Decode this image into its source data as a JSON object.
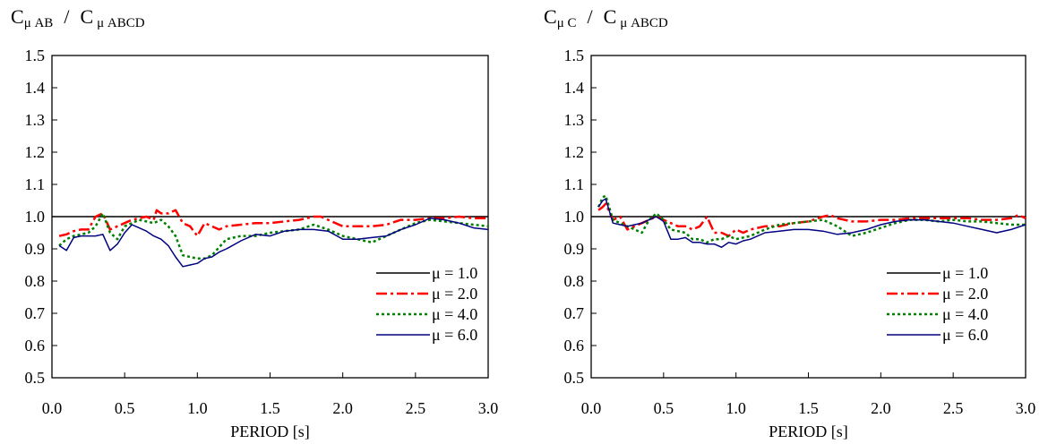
{
  "colors": {
    "mu1": "#000000",
    "mu2": "#ff0000",
    "mu4": "#008000",
    "mu6": "#000080"
  },
  "chart_data": [
    {
      "type": "line",
      "title": {
        "num_base": "C",
        "num_sub": "μ AB",
        "slash": "/",
        "den_base": "C",
        "den_sub": "μ ABCD"
      },
      "xlabel": "PERIOD [s]",
      "ylabel": "",
      "xlim": [
        0.0,
        3.0
      ],
      "ylim": [
        0.5,
        1.5
      ],
      "xticks": [
        "0.0",
        "0.5",
        "1.0",
        "1.5",
        "2.0",
        "2.5",
        "3.0"
      ],
      "yticks": [
        "0.5",
        "0.6",
        "0.7",
        "0.8",
        "0.9",
        "1.0",
        "1.1",
        "1.2",
        "1.3",
        "1.4",
        "1.5"
      ],
      "grid": false,
      "legend_position": "bottom-right",
      "series": [
        {
          "name": "μ = 1.0",
          "style": "solid",
          "color": "#000000",
          "x": [
            0.0,
            3.0
          ],
          "y": [
            1.0,
            1.0
          ]
        },
        {
          "name": "μ = 2.0",
          "style": "dashdot",
          "color": "#ff0000",
          "x": [
            0.05,
            0.1,
            0.15,
            0.2,
            0.25,
            0.3,
            0.35,
            0.4,
            0.45,
            0.5,
            0.55,
            0.6,
            0.65,
            0.7,
            0.72,
            0.75,
            0.8,
            0.85,
            0.9,
            0.95,
            1.0,
            1.05,
            1.1,
            1.15,
            1.2,
            1.3,
            1.4,
            1.5,
            1.6,
            1.7,
            1.75,
            1.8,
            1.85,
            1.9,
            2.0,
            2.1,
            2.2,
            2.3,
            2.4,
            2.5,
            2.6,
            2.7,
            2.8,
            2.9,
            3.0
          ],
          "y": [
            0.94,
            0.945,
            0.955,
            0.96,
            0.96,
            1.0,
            1.01,
            0.96,
            0.97,
            0.98,
            0.99,
            0.995,
            1.0,
            0.99,
            1.02,
            1.01,
            1.01,
            1.02,
            0.98,
            0.97,
            0.94,
            0.98,
            0.97,
            0.96,
            0.97,
            0.975,
            0.98,
            0.98,
            0.985,
            0.99,
            0.995,
            1.0,
            1.0,
            0.99,
            0.97,
            0.97,
            0.97,
            0.975,
            0.99,
            0.99,
            0.995,
            0.995,
            1.0,
            0.995,
            0.995
          ]
        },
        {
          "name": "μ = 4.0",
          "style": "dotted",
          "color": "#008000",
          "x": [
            0.05,
            0.1,
            0.15,
            0.2,
            0.25,
            0.3,
            0.35,
            0.4,
            0.45,
            0.5,
            0.55,
            0.6,
            0.65,
            0.7,
            0.75,
            0.8,
            0.85,
            0.9,
            0.95,
            1.0,
            1.05,
            1.1,
            1.2,
            1.3,
            1.4,
            1.5,
            1.6,
            1.7,
            1.8,
            1.9,
            2.0,
            2.1,
            2.2,
            2.3,
            2.4,
            2.5,
            2.6,
            2.7,
            2.8,
            2.9,
            3.0
          ],
          "y": [
            0.91,
            0.93,
            0.94,
            0.945,
            0.95,
            0.97,
            1.01,
            0.95,
            0.93,
            0.97,
            0.98,
            0.99,
            0.985,
            0.98,
            0.99,
            0.97,
            0.94,
            0.88,
            0.875,
            0.87,
            0.87,
            0.88,
            0.93,
            0.94,
            0.94,
            0.95,
            0.955,
            0.96,
            0.975,
            0.96,
            0.94,
            0.93,
            0.92,
            0.94,
            0.96,
            0.98,
            0.99,
            0.985,
            0.98,
            0.975,
            0.97
          ]
        },
        {
          "name": "μ = 6.0",
          "style": "solid",
          "color": "#000080",
          "x": [
            0.05,
            0.1,
            0.15,
            0.2,
            0.25,
            0.3,
            0.35,
            0.4,
            0.45,
            0.5,
            0.55,
            0.6,
            0.65,
            0.7,
            0.75,
            0.8,
            0.85,
            0.9,
            0.95,
            1.0,
            1.05,
            1.1,
            1.15,
            1.2,
            1.3,
            1.4,
            1.5,
            1.6,
            1.7,
            1.8,
            1.9,
            2.0,
            2.1,
            2.2,
            2.3,
            2.4,
            2.5,
            2.6,
            2.7,
            2.8,
            2.9,
            3.0
          ],
          "y": [
            0.91,
            0.895,
            0.935,
            0.94,
            0.94,
            0.94,
            0.945,
            0.895,
            0.915,
            0.95,
            0.975,
            0.965,
            0.955,
            0.94,
            0.93,
            0.91,
            0.875,
            0.845,
            0.85,
            0.855,
            0.87,
            0.875,
            0.89,
            0.9,
            0.925,
            0.945,
            0.94,
            0.955,
            0.96,
            0.96,
            0.955,
            0.93,
            0.93,
            0.935,
            0.94,
            0.96,
            0.975,
            0.995,
            0.99,
            0.98,
            0.965,
            0.96
          ]
        }
      ]
    },
    {
      "type": "line",
      "title": {
        "num_base": "C",
        "num_sub": "μ C",
        "slash": "/",
        "den_base": "C",
        "den_sub": "μ ABCD"
      },
      "xlabel": "PERIOD [s]",
      "ylabel": "",
      "xlim": [
        0.0,
        3.0
      ],
      "ylim": [
        0.5,
        1.5
      ],
      "xticks": [
        "0.0",
        "0.5",
        "1.0",
        "1.5",
        "2.0",
        "2.5",
        "3.0"
      ],
      "yticks": [
        "0.5",
        "0.6",
        "0.7",
        "0.8",
        "0.9",
        "1.0",
        "1.1",
        "1.2",
        "1.3",
        "1.4",
        "1.5"
      ],
      "grid": false,
      "legend_position": "bottom-right",
      "series": [
        {
          "name": "μ = 1.0",
          "style": "solid",
          "color": "#000000",
          "x": [
            0.0,
            3.0
          ],
          "y": [
            1.0,
            1.0
          ]
        },
        {
          "name": "μ = 2.0",
          "style": "dashdot",
          "color": "#ff0000",
          "x": [
            0.05,
            0.08,
            0.1,
            0.15,
            0.2,
            0.25,
            0.3,
            0.35,
            0.4,
            0.45,
            0.5,
            0.55,
            0.6,
            0.65,
            0.7,
            0.75,
            0.8,
            0.85,
            0.9,
            0.95,
            1.0,
            1.05,
            1.1,
            1.2,
            1.3,
            1.4,
            1.5,
            1.6,
            1.65,
            1.7,
            1.8,
            1.9,
            2.0,
            2.1,
            2.2,
            2.3,
            2.4,
            2.5,
            2.6,
            2.7,
            2.8,
            2.9,
            2.95,
            3.0
          ],
          "y": [
            1.02,
            1.03,
            1.04,
            0.99,
            1.0,
            0.96,
            0.97,
            0.98,
            0.99,
            1.0,
            0.99,
            0.98,
            0.97,
            0.97,
            0.96,
            0.97,
            1.0,
            0.95,
            0.95,
            0.94,
            0.96,
            0.95,
            0.96,
            0.97,
            0.97,
            0.98,
            0.985,
            1.0,
            1.005,
            0.995,
            0.985,
            0.985,
            0.99,
            0.99,
            0.995,
            0.995,
            0.995,
            0.995,
            0.995,
            0.99,
            0.99,
            0.995,
            1.005,
            0.995
          ]
        },
        {
          "name": "μ = 4.0",
          "style": "dotted",
          "color": "#008000",
          "x": [
            0.05,
            0.08,
            0.1,
            0.15,
            0.2,
            0.25,
            0.3,
            0.35,
            0.4,
            0.45,
            0.5,
            0.55,
            0.6,
            0.65,
            0.7,
            0.75,
            0.8,
            0.85,
            0.9,
            0.95,
            1.0,
            1.1,
            1.2,
            1.3,
            1.4,
            1.5,
            1.6,
            1.7,
            1.8,
            1.9,
            2.0,
            2.1,
            2.2,
            2.3,
            2.4,
            2.5,
            2.6,
            2.7,
            2.8,
            2.9,
            3.0
          ],
          "y": [
            1.03,
            1.06,
            1.065,
            0.99,
            0.98,
            0.97,
            0.96,
            0.95,
            0.99,
            1.01,
            0.99,
            0.96,
            0.955,
            0.95,
            0.93,
            0.93,
            0.92,
            0.93,
            0.93,
            0.94,
            0.93,
            0.94,
            0.96,
            0.975,
            0.98,
            0.985,
            0.99,
            0.97,
            0.94,
            0.95,
            0.965,
            0.98,
            0.99,
            0.99,
            0.985,
            0.99,
            0.985,
            0.985,
            0.98,
            0.975,
            0.975
          ]
        },
        {
          "name": "μ = 6.0",
          "style": "solid",
          "color": "#000080",
          "x": [
            0.05,
            0.08,
            0.1,
            0.15,
            0.2,
            0.25,
            0.3,
            0.35,
            0.4,
            0.45,
            0.5,
            0.55,
            0.6,
            0.65,
            0.7,
            0.75,
            0.8,
            0.85,
            0.9,
            0.95,
            1.0,
            1.05,
            1.1,
            1.2,
            1.3,
            1.4,
            1.5,
            1.6,
            1.7,
            1.8,
            1.9,
            2.0,
            2.1,
            2.2,
            2.3,
            2.4,
            2.5,
            2.6,
            2.7,
            2.8,
            2.9,
            3.0
          ],
          "y": [
            1.03,
            1.05,
            1.055,
            0.98,
            0.975,
            0.97,
            0.975,
            0.98,
            0.99,
            1.0,
            0.985,
            0.93,
            0.93,
            0.935,
            0.92,
            0.92,
            0.915,
            0.915,
            0.905,
            0.92,
            0.915,
            0.925,
            0.93,
            0.95,
            0.955,
            0.96,
            0.96,
            0.955,
            0.945,
            0.95,
            0.96,
            0.975,
            0.985,
            0.99,
            0.99,
            0.985,
            0.98,
            0.97,
            0.96,
            0.95,
            0.96,
            0.975
          ]
        }
      ]
    }
  ]
}
